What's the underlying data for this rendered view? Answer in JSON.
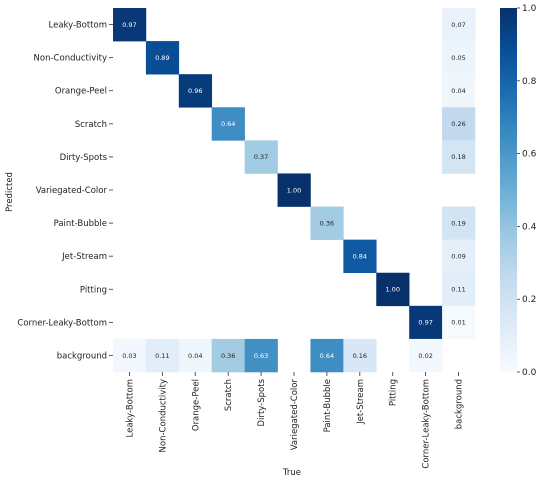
{
  "chart_data": {
    "type": "heatmap",
    "xlabel": "True",
    "ylabel": "Predicted",
    "x_categories": [
      "Leaky-Bottom",
      "Non-Conductivity",
      "Orange-Peel",
      "Scratch",
      "Dirty-Spots",
      "Variegated-Color",
      "Paint-Bubble",
      "Jet-Stream",
      "Pitting",
      "Corner-Leaky-Bottom",
      "background"
    ],
    "y_categories": [
      "Leaky-Bottom",
      "Non-Conductivity",
      "Orange-Peel",
      "Scratch",
      "Dirty-Spots",
      "Variegated-Color",
      "Paint-Bubble",
      "Jet-Stream",
      "Pitting",
      "Corner-Leaky-Bottom",
      "background"
    ],
    "values": [
      [
        0.97,
        null,
        null,
        null,
        null,
        null,
        null,
        null,
        null,
        null,
        0.07
      ],
      [
        null,
        0.89,
        null,
        null,
        null,
        null,
        null,
        null,
        null,
        null,
        0.05
      ],
      [
        null,
        null,
        0.96,
        null,
        null,
        null,
        null,
        null,
        null,
        null,
        0.04
      ],
      [
        null,
        null,
        null,
        0.64,
        null,
        null,
        null,
        null,
        null,
        null,
        0.26
      ],
      [
        null,
        null,
        null,
        null,
        0.37,
        null,
        null,
        null,
        null,
        null,
        0.18
      ],
      [
        null,
        null,
        null,
        null,
        null,
        1.0,
        null,
        null,
        null,
        null,
        null
      ],
      [
        null,
        null,
        null,
        null,
        null,
        null,
        0.36,
        null,
        null,
        null,
        0.19
      ],
      [
        null,
        null,
        null,
        null,
        null,
        null,
        null,
        0.84,
        null,
        null,
        0.09
      ],
      [
        null,
        null,
        null,
        null,
        null,
        null,
        null,
        null,
        1.0,
        null,
        0.11
      ],
      [
        null,
        null,
        null,
        null,
        null,
        null,
        null,
        null,
        null,
        0.97,
        0.01
      ],
      [
        0.03,
        0.11,
        0.04,
        0.36,
        0.63,
        null,
        0.64,
        0.16,
        null,
        0.02,
        null
      ]
    ],
    "colorbar": {
      "range": [
        0.0,
        1.0
      ],
      "ticks": [
        "0.0",
        "0.2",
        "0.4",
        "0.6",
        "0.8",
        "1.0"
      ]
    },
    "colormap": "Blues"
  }
}
